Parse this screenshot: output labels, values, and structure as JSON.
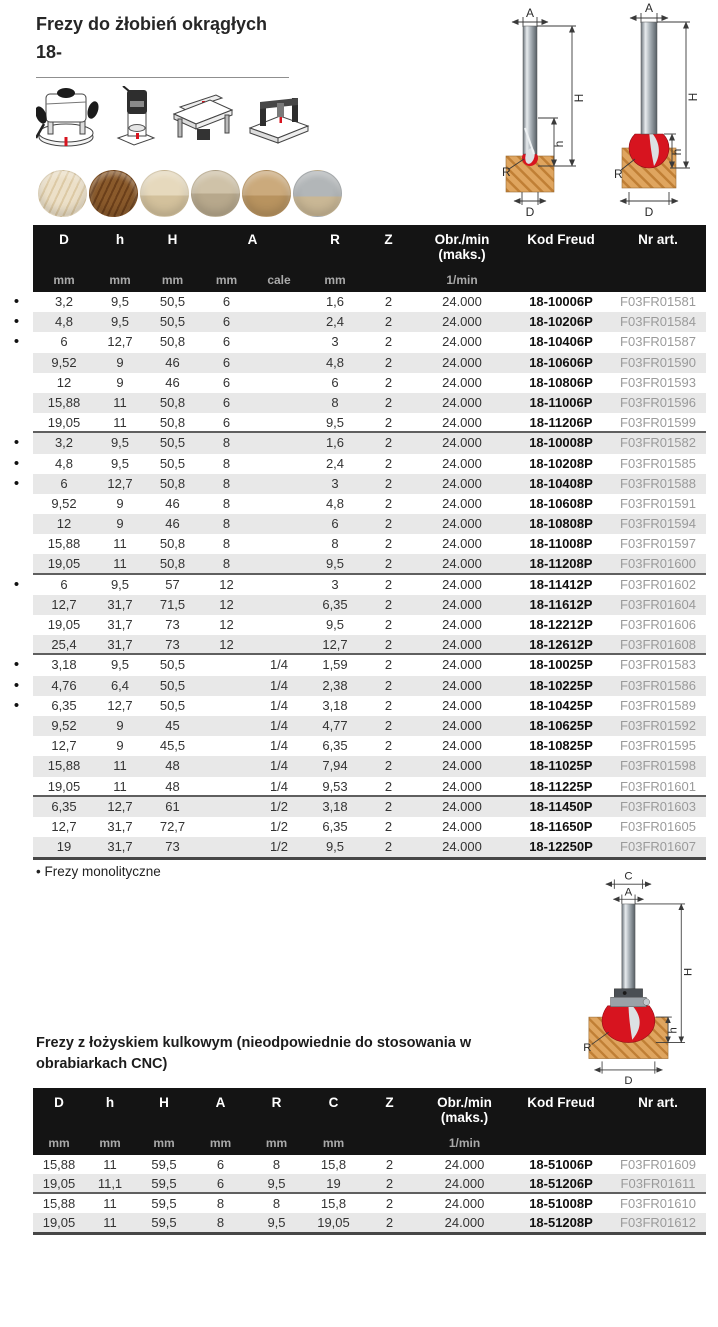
{
  "page_title": {
    "line1": "Frezy do żłobień okrągłych",
    "line2": "18-"
  },
  "bullet_char": "•",
  "note": "Frezy monolityczne",
  "section2_title": "Frezy z łożyskiem kulkowym (nieodpowiednie do stosowania w obrabiarkach CNC)",
  "colors": {
    "accent_red": "#d7141f",
    "header_bg": "#141414",
    "row_alt_gray": "#e8e8e8",
    "nr_art_gray": "#9a9a9a",
    "wood": "#dfa55f"
  },
  "machine_icons": [
    "plunge-router",
    "trim-router",
    "router-table",
    "cnc-machine"
  ],
  "material_icons": [
    "solid-softwood",
    "solid-hardwood",
    "plywood",
    "chipboard",
    "mdf",
    "laminated-chipboard"
  ],
  "diagram_labels": {
    "a": "A",
    "h_big": "H",
    "h_small": "h",
    "r": "R",
    "d": "D",
    "c": "C"
  },
  "table1": {
    "columns": [
      {
        "label": "D",
        "unit": "mm"
      },
      {
        "label": "h",
        "unit": "mm"
      },
      {
        "label": "H",
        "unit": "mm"
      },
      {
        "label": "A",
        "unit": "mm",
        "span": 2
      },
      {
        "label": null,
        "unit": "cale"
      },
      {
        "label": "R",
        "unit": "mm"
      },
      {
        "label": "Z",
        "unit": ""
      },
      {
        "label": "Obr./min\n(maks.)",
        "unit": "1/min"
      },
      {
        "label": "Kod Freud",
        "unit": ""
      },
      {
        "label": "Nr art.",
        "unit": ""
      }
    ],
    "separators_after": [
      7,
      14,
      18,
      25
    ],
    "rows": [
      {
        "b": true,
        "cells": [
          "3,2",
          "9,5",
          "50,5",
          "6",
          "",
          "1,6",
          "2",
          "24.000",
          "18-10006P",
          "F03FR01581"
        ]
      },
      {
        "b": true,
        "cells": [
          "4,8",
          "9,5",
          "50,5",
          "6",
          "",
          "2,4",
          "2",
          "24.000",
          "18-10206P",
          "F03FR01584"
        ]
      },
      {
        "b": true,
        "cells": [
          "6",
          "12,7",
          "50,8",
          "6",
          "",
          "3",
          "2",
          "24.000",
          "18-10406P",
          "F03FR01587"
        ]
      },
      {
        "b": false,
        "cells": [
          "9,52",
          "9",
          "46",
          "6",
          "",
          "4,8",
          "2",
          "24.000",
          "18-10606P",
          "F03FR01590"
        ]
      },
      {
        "b": false,
        "cells": [
          "12",
          "9",
          "46",
          "6",
          "",
          "6",
          "2",
          "24.000",
          "18-10806P",
          "F03FR01593"
        ]
      },
      {
        "b": false,
        "cells": [
          "15,88",
          "11",
          "50,8",
          "6",
          "",
          "8",
          "2",
          "24.000",
          "18-11006P",
          "F03FR01596"
        ]
      },
      {
        "b": false,
        "cells": [
          "19,05",
          "11",
          "50,8",
          "6",
          "",
          "9,5",
          "2",
          "24.000",
          "18-11206P",
          "F03FR01599"
        ]
      },
      {
        "b": true,
        "cells": [
          "3,2",
          "9,5",
          "50,5",
          "8",
          "",
          "1,6",
          "2",
          "24.000",
          "18-10008P",
          "F03FR01582"
        ]
      },
      {
        "b": true,
        "cells": [
          "4,8",
          "9,5",
          "50,5",
          "8",
          "",
          "2,4",
          "2",
          "24.000",
          "18-10208P",
          "F03FR01585"
        ]
      },
      {
        "b": true,
        "cells": [
          "6",
          "12,7",
          "50,8",
          "8",
          "",
          "3",
          "2",
          "24.000",
          "18-10408P",
          "F03FR01588"
        ]
      },
      {
        "b": false,
        "cells": [
          "9,52",
          "9",
          "46",
          "8",
          "",
          "4,8",
          "2",
          "24.000",
          "18-10608P",
          "F03FR01591"
        ]
      },
      {
        "b": false,
        "cells": [
          "12",
          "9",
          "46",
          "8",
          "",
          "6",
          "2",
          "24.000",
          "18-10808P",
          "F03FR01594"
        ]
      },
      {
        "b": false,
        "cells": [
          "15,88",
          "11",
          "50,8",
          "8",
          "",
          "8",
          "2",
          "24.000",
          "18-11008P",
          "F03FR01597"
        ]
      },
      {
        "b": false,
        "cells": [
          "19,05",
          "11",
          "50,8",
          "8",
          "",
          "9,5",
          "2",
          "24.000",
          "18-11208P",
          "F03FR01600"
        ]
      },
      {
        "b": true,
        "cells": [
          "6",
          "9,5",
          "57",
          "12",
          "",
          "3",
          "2",
          "24.000",
          "18-11412P",
          "F03FR01602"
        ]
      },
      {
        "b": false,
        "cells": [
          "12,7",
          "31,7",
          "71,5",
          "12",
          "",
          "6,35",
          "2",
          "24.000",
          "18-11612P",
          "F03FR01604"
        ]
      },
      {
        "b": false,
        "cells": [
          "19,05",
          "31,7",
          "73",
          "12",
          "",
          "9,5",
          "2",
          "24.000",
          "18-12212P",
          "F03FR01606"
        ]
      },
      {
        "b": false,
        "cells": [
          "25,4",
          "31,7",
          "73",
          "12",
          "",
          "12,7",
          "2",
          "24.000",
          "18-12612P",
          "F03FR01608"
        ]
      },
      {
        "b": true,
        "cells": [
          "3,18",
          "9,5",
          "50,5",
          "",
          "1/4",
          "1,59",
          "2",
          "24.000",
          "18-10025P",
          "F03FR01583"
        ]
      },
      {
        "b": true,
        "cells": [
          "4,76",
          "6,4",
          "50,5",
          "",
          "1/4",
          "2,38",
          "2",
          "24.000",
          "18-10225P",
          "F03FR01586"
        ]
      },
      {
        "b": true,
        "cells": [
          "6,35",
          "12,7",
          "50,5",
          "",
          "1/4",
          "3,18",
          "2",
          "24.000",
          "18-10425P",
          "F03FR01589"
        ]
      },
      {
        "b": false,
        "cells": [
          "9,52",
          "9",
          "45",
          "",
          "1/4",
          "4,77",
          "2",
          "24.000",
          "18-10625P",
          "F03FR01592"
        ]
      },
      {
        "b": false,
        "cells": [
          "12,7",
          "9",
          "45,5",
          "",
          "1/4",
          "6,35",
          "2",
          "24.000",
          "18-10825P",
          "F03FR01595"
        ]
      },
      {
        "b": false,
        "cells": [
          "15,88",
          "11",
          "48",
          "",
          "1/4",
          "7,94",
          "2",
          "24.000",
          "18-11025P",
          "F03FR01598"
        ]
      },
      {
        "b": false,
        "cells": [
          "19,05",
          "11",
          "48",
          "",
          "1/4",
          "9,53",
          "2",
          "24.000",
          "18-11225P",
          "F03FR01601"
        ]
      },
      {
        "b": false,
        "cells": [
          "6,35",
          "12,7",
          "61",
          "",
          "1/2",
          "3,18",
          "2",
          "24.000",
          "18-11450P",
          "F03FR01603"
        ]
      },
      {
        "b": false,
        "cells": [
          "12,7",
          "31,7",
          "72,7",
          "",
          "1/2",
          "6,35",
          "2",
          "24.000",
          "18-11650P",
          "F03FR01605"
        ]
      },
      {
        "b": false,
        "cells": [
          "19",
          "31,7",
          "73",
          "",
          "1/2",
          "9,5",
          "2",
          "24.000",
          "18-12250P",
          "F03FR01607"
        ]
      }
    ]
  },
  "table2": {
    "columns": [
      {
        "label": "D",
        "unit": "mm"
      },
      {
        "label": "h",
        "unit": "mm"
      },
      {
        "label": "H",
        "unit": "mm"
      },
      {
        "label": "A",
        "unit": "mm"
      },
      {
        "label": "R",
        "unit": "mm"
      },
      {
        "label": "C",
        "unit": "mm"
      },
      {
        "label": "Z",
        "unit": ""
      },
      {
        "label": "Obr./min\n(maks.)",
        "unit": "1/min"
      },
      {
        "label": "Kod Freud",
        "unit": ""
      },
      {
        "label": "Nr art.",
        "unit": ""
      }
    ],
    "separators_after": [
      2
    ],
    "rows": [
      {
        "b": false,
        "cells": [
          "15,88",
          "11",
          "59,5",
          "6",
          "8",
          "15,8",
          "2",
          "24.000",
          "18-51006P",
          "F03FR01609"
        ]
      },
      {
        "b": false,
        "cells": [
          "19,05",
          "11,1",
          "59,5",
          "6",
          "9,5",
          "19",
          "2",
          "24.000",
          "18-51206P",
          "F03FR01611"
        ]
      },
      {
        "b": false,
        "cells": [
          "15,88",
          "11",
          "59,5",
          "8",
          "8",
          "15,8",
          "2",
          "24.000",
          "18-51008P",
          "F03FR01610"
        ]
      },
      {
        "b": false,
        "cells": [
          "19,05",
          "11",
          "59,5",
          "8",
          "9,5",
          "19,05",
          "2",
          "24.000",
          "18-51208P",
          "F03FR01612"
        ]
      }
    ]
  }
}
